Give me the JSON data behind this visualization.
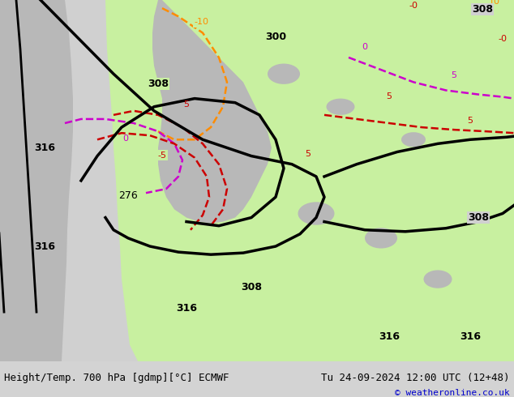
{
  "title_left": "Height/Temp. 700 hPa [gdmp][°C] ECMWF",
  "title_right": "Tu 24-09-2024 12:00 UTC (12+48)",
  "copyright": "© weatheronline.co.uk",
  "bg_color": "#d3d3d3",
  "map_bg_color": "#f0f0f0",
  "land_green_color": "#c8f0a0",
  "land_gray_color": "#b8b8b8",
  "fig_width": 6.34,
  "fig_height": 4.9,
  "dpi": 100,
  "bottom_bar_color": "#e8e8e8",
  "font_size_title": 9,
  "font_size_copyright": 8
}
